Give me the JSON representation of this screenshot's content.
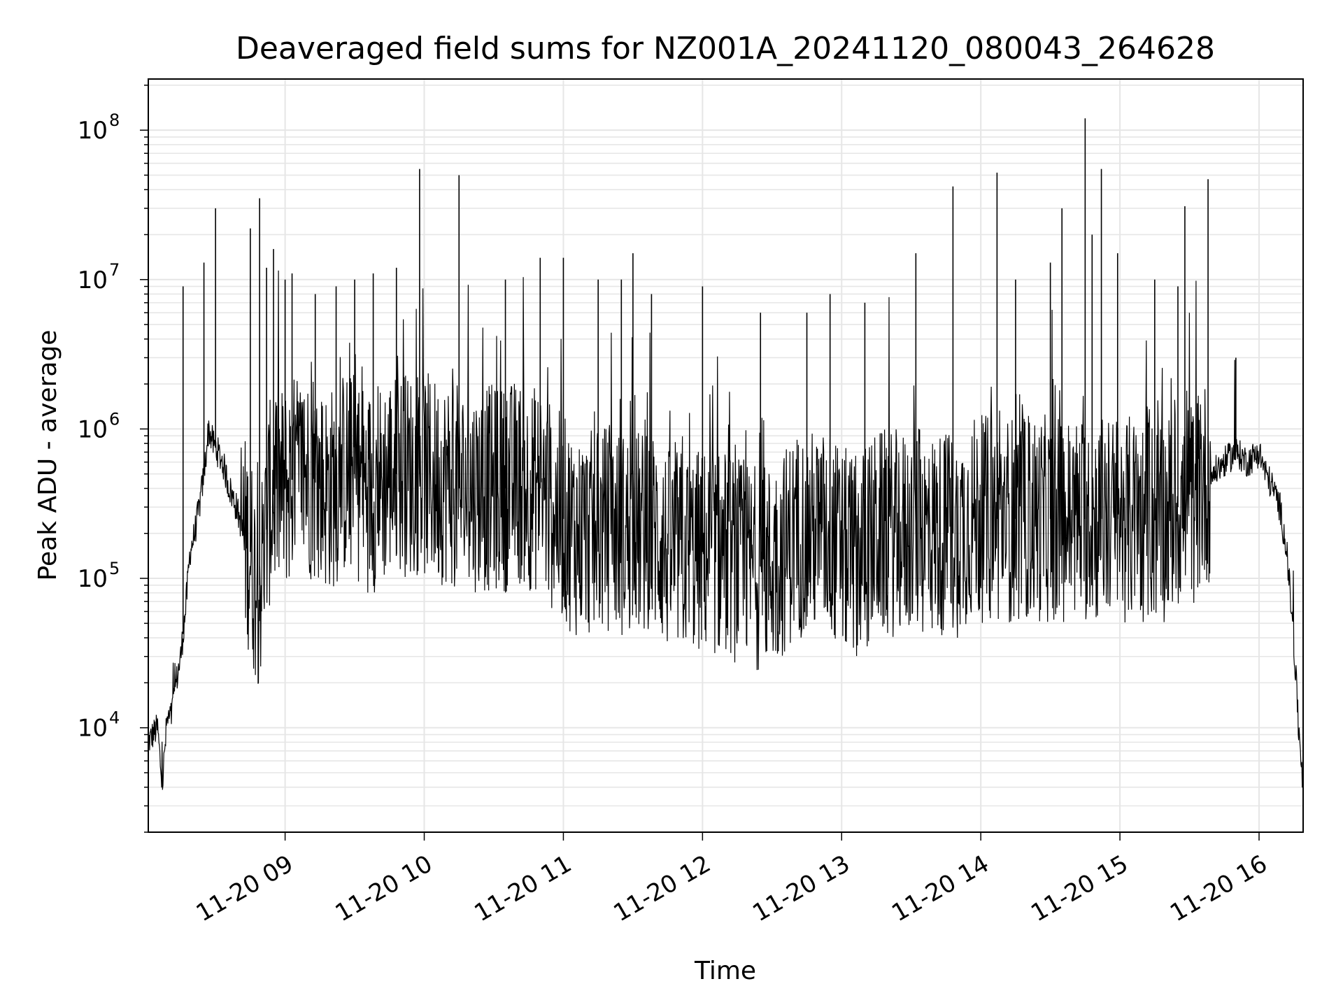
{
  "chart_data": {
    "type": "line",
    "title": "Deaveraged field sums for NZ001A_20241120_080043_264628",
    "xlabel": "Time",
    "ylabel": "Peak ADU - average",
    "yscale": "log",
    "xlim": [
      "2024-11-20 08:01",
      "2024-11-20 16:19"
    ],
    "ylim": [
      2000,
      220000000
    ],
    "grid": true,
    "grid_color": "#e6e6e6",
    "line_color": "#000000",
    "x_ticks": [
      {
        "value": "2024-11-20 09:00",
        "label": "11-20 09"
      },
      {
        "value": "2024-11-20 10:00",
        "label": "11-20 10"
      },
      {
        "value": "2024-11-20 11:00",
        "label": "11-20 11"
      },
      {
        "value": "2024-11-20 12:00",
        "label": "11-20 12"
      },
      {
        "value": "2024-11-20 13:00",
        "label": "11-20 13"
      },
      {
        "value": "2024-11-20 14:00",
        "label": "11-20 14"
      },
      {
        "value": "2024-11-20 15:00",
        "label": "11-20 15"
      },
      {
        "value": "2024-11-20 16:00",
        "label": "11-20 16"
      }
    ],
    "y_ticks": [
      {
        "value": 10000,
        "base": "10",
        "exp": "4"
      },
      {
        "value": 100000,
        "base": "10",
        "exp": "5"
      },
      {
        "value": 1000000,
        "base": "10",
        "exp": "6"
      },
      {
        "value": 10000000,
        "base": "10",
        "exp": "7"
      },
      {
        "value": 100000000,
        "base": "10",
        "exp": "8"
      }
    ],
    "series": [
      {
        "x": [
          "2024-11-20 08:01",
          "2024-11-20 08:03",
          "2024-11-20 08:05",
          "2024-11-20 08:07",
          "2024-11-20 08:09",
          "2024-11-20 08:11",
          "2024-11-20 08:13",
          "2024-11-20 08:15",
          "2024-11-20 08:17",
          "2024-11-20 08:19",
          "2024-11-20 08:21",
          "2024-11-20 08:23",
          "2024-11-20 08:25",
          "2024-11-20 08:27",
          "2024-11-20 08:29",
          "2024-11-20 08:31",
          "2024-11-20 08:33",
          "2024-11-20 08:36",
          "2024-11-20 08:39",
          "2024-11-20 08:42",
          "2024-11-20 08:45",
          "2024-11-20 08:47",
          "2024-11-20 08:49",
          "2024-11-20 08:51",
          "2024-11-20 08:53",
          "2024-11-20 08:56",
          "2024-11-20 09:00",
          "2024-11-20 09:05",
          "2024-11-20 09:10",
          "2024-11-20 09:15",
          "2024-11-20 09:20",
          "2024-11-20 09:25",
          "2024-11-20 09:30",
          "2024-11-20 09:35",
          "2024-11-20 09:40",
          "2024-11-20 09:45",
          "2024-11-20 09:50",
          "2024-11-20 09:55",
          "2024-11-20 09:59",
          "2024-11-20 10:05",
          "2024-11-20 10:10",
          "2024-11-20 10:15",
          "2024-11-20 10:20",
          "2024-11-20 10:25",
          "2024-11-20 10:30",
          "2024-11-20 10:35",
          "2024-11-20 10:40",
          "2024-11-20 10:45",
          "2024-11-20 10:50",
          "2024-11-20 10:55",
          "2024-11-20 11:00",
          "2024-11-20 11:05",
          "2024-11-20 11:10",
          "2024-11-20 11:15",
          "2024-11-20 11:20",
          "2024-11-20 11:25",
          "2024-11-20 11:30",
          "2024-11-20 11:35",
          "2024-11-20 11:40",
          "2024-11-20 11:45",
          "2024-11-20 11:50",
          "2024-11-20 11:55",
          "2024-11-20 12:00",
          "2024-11-20 12:05",
          "2024-11-20 12:10",
          "2024-11-20 12:15",
          "2024-11-20 12:20",
          "2024-11-20 12:25",
          "2024-11-20 12:30",
          "2024-11-20 12:35",
          "2024-11-20 12:40",
          "2024-11-20 12:45",
          "2024-11-20 12:50",
          "2024-11-20 12:55",
          "2024-11-20 13:00",
          "2024-11-20 13:05",
          "2024-11-20 13:10",
          "2024-11-20 13:15",
          "2024-11-20 13:20",
          "2024-11-20 13:25",
          "2024-11-20 13:30",
          "2024-11-20 13:35",
          "2024-11-20 13:40",
          "2024-11-20 13:45",
          "2024-11-20 13:50",
          "2024-11-20 13:55",
          "2024-11-20 14:00",
          "2024-11-20 14:05",
          "2024-11-20 14:10",
          "2024-11-20 14:15",
          "2024-11-20 14:20",
          "2024-11-20 14:25",
          "2024-11-20 14:30",
          "2024-11-20 14:35",
          "2024-11-20 14:40",
          "2024-11-20 14:45",
          "2024-11-20 14:50",
          "2024-11-20 14:55",
          "2024-11-20 15:00",
          "2024-11-20 15:05",
          "2024-11-20 15:10",
          "2024-11-20 15:15",
          "2024-11-20 15:20",
          "2024-11-20 15:25",
          "2024-11-20 15:30",
          "2024-11-20 15:35",
          "2024-11-20 15:40",
          "2024-11-20 15:45",
          "2024-11-20 15:50",
          "2024-11-20 15:55",
          "2024-11-20 16:00",
          "2024-11-20 16:03",
          "2024-11-20 16:06",
          "2024-11-20 16:09",
          "2024-11-20 16:12",
          "2024-11-20 16:14",
          "2024-11-20 16:16",
          "2024-11-20 16:17",
          "2024-11-20 16:18",
          "2024-11-20 16:19"
        ],
        "y": [
          8000,
          9000,
          10000,
          4000,
          11000,
          12000,
          20000,
          30000,
          60000,
          150000,
          200000,
          300000,
          500000,
          1000000,
          800000,
          700000,
          600000,
          400000,
          300000,
          200000,
          150000,
          100000,
          90000,
          150000,
          300000,
          400000,
          400000,
          500000,
          500000,
          400000,
          400000,
          500000,
          500000,
          400000,
          400000,
          500000,
          500000,
          500000,
          500000,
          450000,
          450000,
          400000,
          400000,
          400000,
          400000,
          400000,
          450000,
          400000,
          400000,
          300000,
          250000,
          200000,
          200000,
          200000,
          220000,
          200000,
          200000,
          200000,
          200000,
          150000,
          150000,
          150000,
          150000,
          150000,
          150000,
          130000,
          120000,
          120000,
          120000,
          150000,
          200000,
          200000,
          200000,
          200000,
          150000,
          150000,
          150000,
          200000,
          200000,
          200000,
          200000,
          200000,
          200000,
          200000,
          200000,
          250000,
          250000,
          250000,
          250000,
          250000,
          250000,
          250000,
          250000,
          250000,
          250000,
          250000,
          250000,
          250000,
          250000,
          250000,
          250000,
          250000,
          250000,
          300000,
          300000,
          400000,
          500000,
          600000,
          700000,
          600000,
          700000,
          500000,
          400000,
          300000,
          150000,
          60000,
          20000,
          10000,
          7000,
          4000
        ]
      }
    ],
    "spikes": {
      "x": [
        "2024-11-20 08:16",
        "2024-11-20 08:25",
        "2024-11-20 08:30",
        "2024-11-20 08:45",
        "2024-11-20 08:49",
        "2024-11-20 08:52",
        "2024-11-20 08:55",
        "2024-11-20 09:00",
        "2024-11-20 09:03",
        "2024-11-20 09:13",
        "2024-11-20 09:22",
        "2024-11-20 09:30",
        "2024-11-20 09:38",
        "2024-11-20 09:48",
        "2024-11-20 09:58",
        "2024-11-20 10:15",
        "2024-11-20 10:35",
        "2024-11-20 10:50",
        "2024-11-20 11:00",
        "2024-11-20 11:15",
        "2024-11-20 11:25",
        "2024-11-20 11:30",
        "2024-11-20 11:38",
        "2024-11-20 12:00",
        "2024-11-20 12:25",
        "2024-11-20 12:45",
        "2024-11-20 12:55",
        "2024-11-20 13:10",
        "2024-11-20 13:32",
        "2024-11-20 13:48",
        "2024-11-20 14:07",
        "2024-11-20 14:15",
        "2024-11-20 14:30",
        "2024-11-20 14:35",
        "2024-11-20 14:45",
        "2024-11-20 14:48",
        "2024-11-20 14:52",
        "2024-11-20 14:59",
        "2024-11-20 15:15",
        "2024-11-20 15:25",
        "2024-11-20 15:28",
        "2024-11-20 15:38",
        "2024-11-20 15:50"
      ],
      "y": [
        9000000,
        13000000,
        30000000,
        22000000,
        35000000,
        12000000,
        16000000,
        10000000,
        11000000,
        8000000,
        9000000,
        10000000,
        11000000,
        12000000,
        55000000,
        50000000,
        10000000,
        14000000,
        14000000,
        10000000,
        10000000,
        15000000,
        8000000,
        9000000,
        6000000,
        6000000,
        8000000,
        7000000,
        15000000,
        42000000,
        52000000,
        10000000,
        13000000,
        30000000,
        120000000,
        20000000,
        55000000,
        15000000,
        10000000,
        9000000,
        31000000,
        47000000,
        3000000
      ]
    }
  }
}
